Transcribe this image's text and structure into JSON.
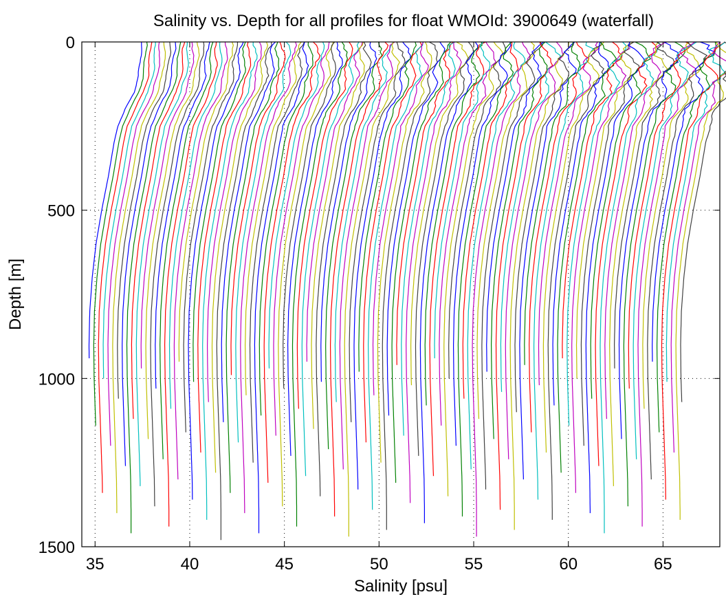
{
  "chart_data": {
    "type": "line",
    "title": "Salinity vs. Depth for all profiles for float WMOId: 3900649 (waterfall)",
    "xlabel": "Salinity [psu]",
    "ylabel": "Depth [m]",
    "xlim": [
      34.3,
      68.0
    ],
    "ylim": [
      0,
      1500
    ],
    "y_reversed": true,
    "grid": "dotted",
    "x_ticks": [
      35,
      40,
      45,
      50,
      55,
      60,
      65
    ],
    "x_tick_labels": [
      "35",
      "40",
      "45",
      "50",
      "55",
      "60",
      "65"
    ],
    "y_ticks": [
      0,
      500,
      1000,
      1500
    ],
    "y_tick_labels": [
      "0",
      "500",
      "1000",
      "1500"
    ],
    "series_colors": [
      "#0000ff",
      "#008000",
      "#ff0000",
      "#00bfbf",
      "#bf00bf",
      "#bfbf00",
      "#404040"
    ],
    "waterfall": {
      "profile_count": 126,
      "first_profile_x_offset": 0.0,
      "offset_step_psu": 0.25,
      "base_profile": {
        "depth": [
          0,
          50,
          100,
          150,
          200,
          250,
          300,
          400,
          500,
          600,
          700,
          800,
          900,
          1000,
          1100,
          1200,
          1300,
          1390
        ],
        "salinity": [
          37.45,
          37.4,
          37.3,
          37.05,
          36.6,
          36.2,
          36.0,
          35.7,
          35.35,
          35.05,
          34.85,
          34.72,
          34.68,
          34.7,
          34.76,
          34.82,
          34.88,
          34.9
        ]
      },
      "max_depth_range": [
        940,
        1490
      ]
    }
  }
}
